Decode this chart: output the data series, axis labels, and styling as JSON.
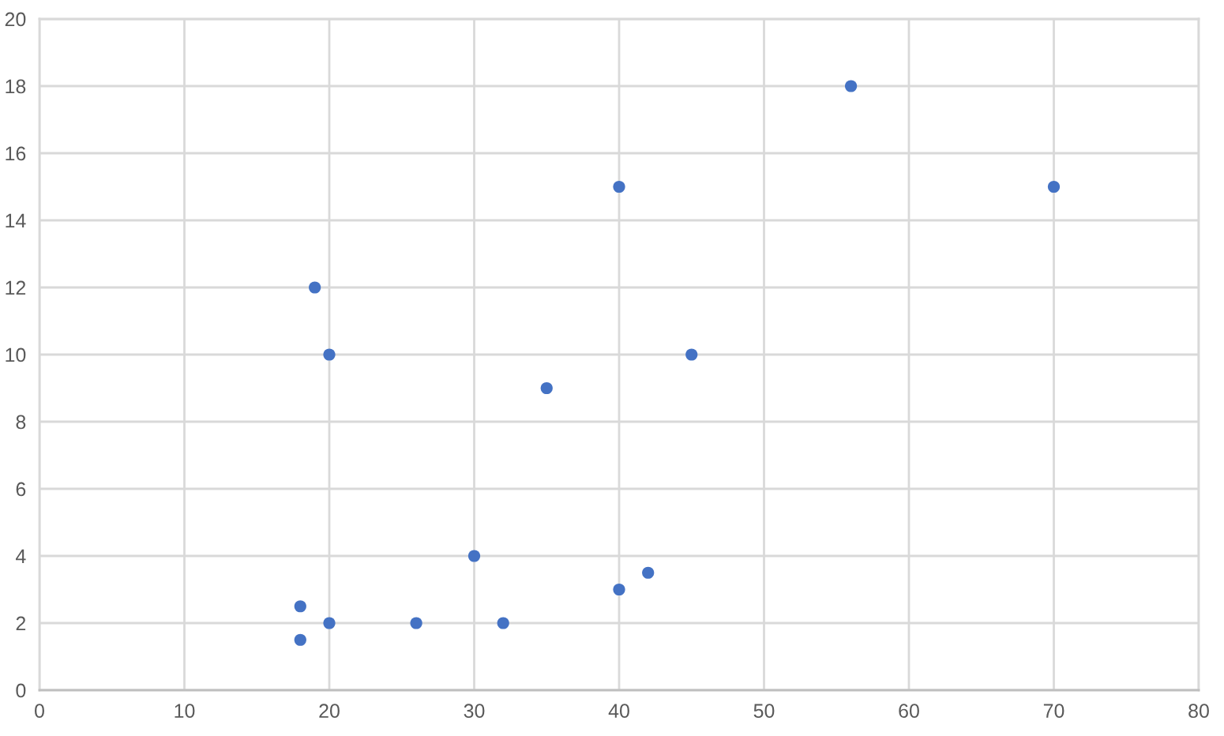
{
  "chart_data": {
    "type": "scatter",
    "x": [
      19,
      20,
      40,
      56,
      70,
      45,
      35,
      30,
      42,
      40,
      18,
      18,
      20,
      26,
      32
    ],
    "values": [
      12,
      10,
      15,
      18,
      15,
      10,
      9,
      4,
      3.5,
      3,
      2.5,
      1.5,
      2,
      2,
      2
    ],
    "color": "#4472c4",
    "marker": "circle",
    "xlim": [
      0,
      80
    ],
    "xticks": [
      0,
      10,
      20,
      30,
      40,
      50,
      60,
      70,
      80
    ],
    "ylim": [
      0,
      20
    ],
    "yticks": [
      0,
      2,
      4,
      6,
      8,
      10,
      12,
      14,
      16,
      18,
      20
    ],
    "grid": true
  }
}
